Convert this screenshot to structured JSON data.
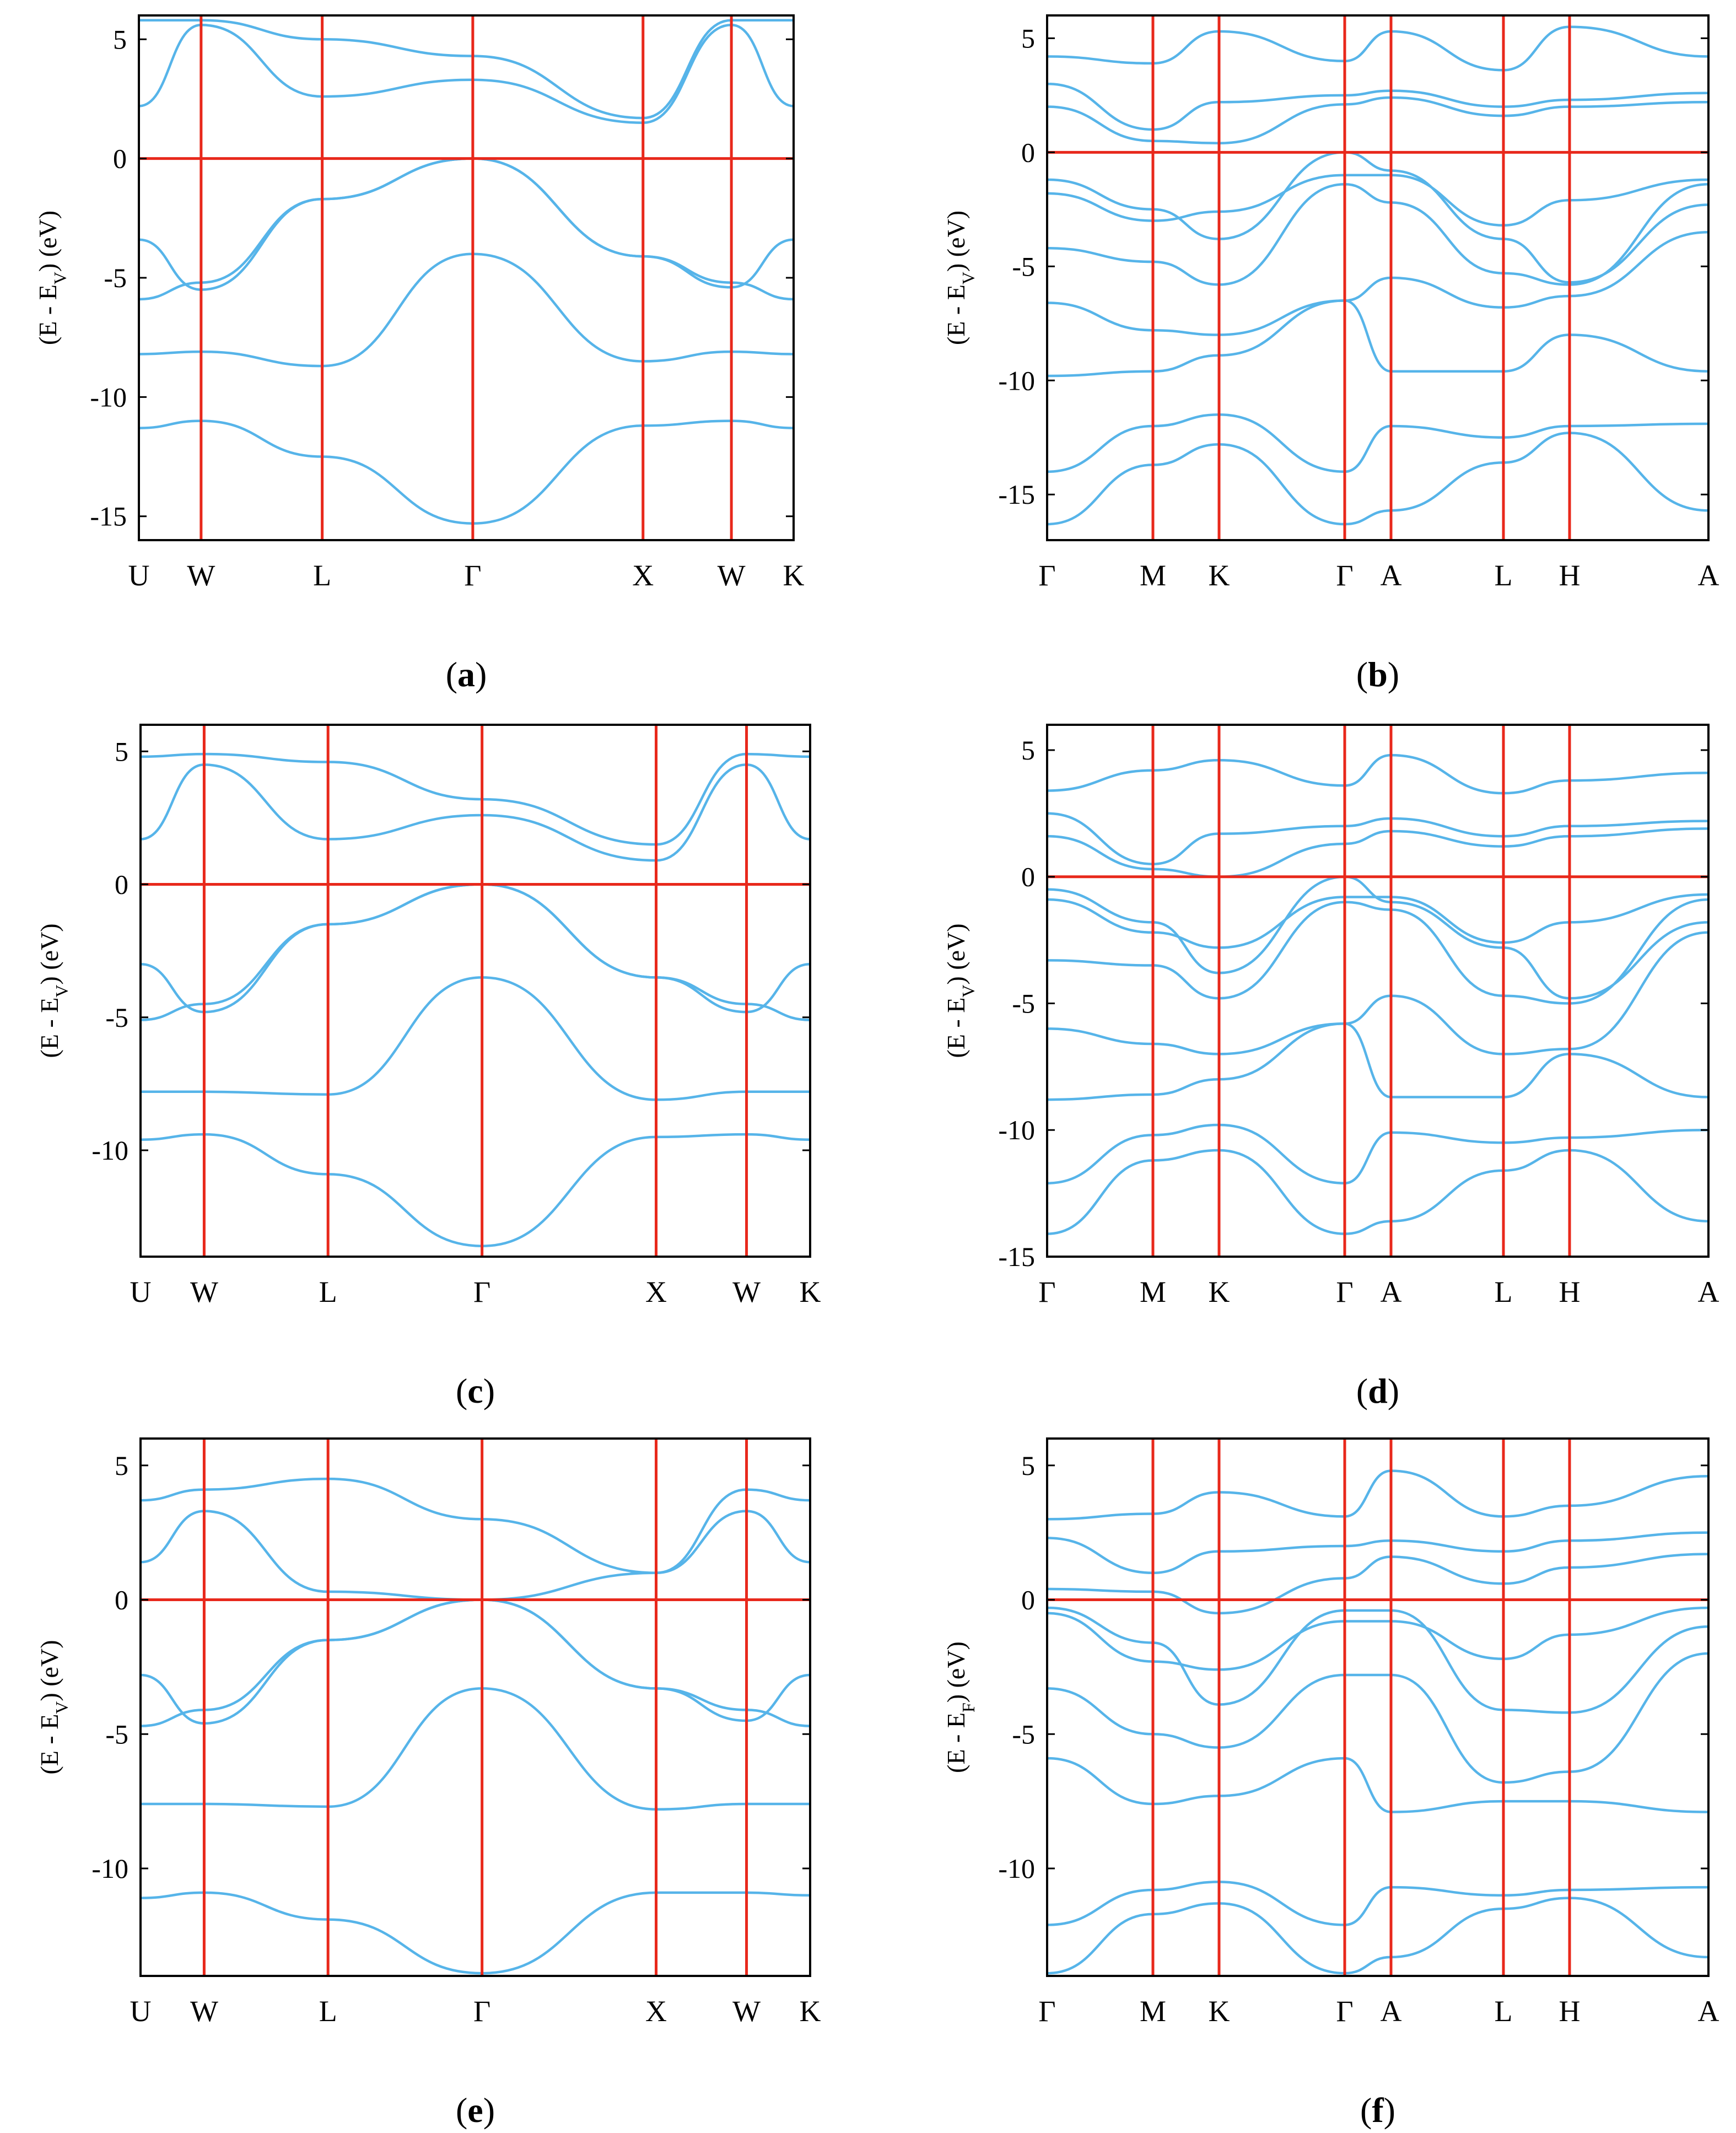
{
  "chart_data": [
    {
      "type": "line",
      "panel": "a",
      "caption": "(a)",
      "caption_open": "(",
      "caption_letter": "a",
      "caption_close": ")",
      "title": "",
      "xlabel": "",
      "ylabel_main": "(E - E",
      "ylabel_sub": "V",
      "ylabel_unit": ") (eV)",
      "ylim": [
        -16,
        6
      ],
      "yticks": [
        5,
        0,
        -5,
        -10,
        -15
      ],
      "ytick_labels": [
        "5",
        "0",
        "-5",
        "-10",
        "-15"
      ],
      "x": [
        0,
        0.095,
        0.28,
        0.51,
        0.77,
        0.905,
        1.0
      ],
      "kpoints": [
        "U",
        "W",
        "L",
        "Γ",
        "X",
        "W",
        "K"
      ],
      "fermi_level": 0,
      "series": [
        {
          "name": "band 1",
          "values": [
            -11.3,
            -11.0,
            -12.5,
            -15.3,
            -11.2,
            -11.0,
            -11.3
          ]
        },
        {
          "name": "band 2",
          "values": [
            -8.2,
            -8.1,
            -8.7,
            -4.0,
            -8.5,
            -8.1,
            -8.2
          ]
        },
        {
          "name": "band 3",
          "values": [
            -5.9,
            -5.2,
            -1.7,
            0.0,
            -4.1,
            -5.2,
            -5.9
          ]
        },
        {
          "name": "band 4",
          "values": [
            -3.4,
            -5.5,
            -1.7,
            0.0,
            -4.1,
            -5.4,
            -3.4
          ]
        },
        {
          "name": "band 5",
          "values": [
            2.2,
            5.6,
            2.6,
            3.3,
            1.5,
            5.6,
            2.2
          ]
        },
        {
          "name": "band 6",
          "values": [
            5.8,
            5.8,
            5.0,
            4.3,
            1.7,
            5.8,
            5.8
          ]
        }
      ]
    },
    {
      "type": "line",
      "panel": "b",
      "caption": "(b)",
      "caption_open": "(",
      "caption_letter": "b",
      "caption_close": ")",
      "title": "",
      "xlabel": "",
      "ylabel_main": "(E - E",
      "ylabel_sub": "V",
      "ylabel_unit": ") (eV)",
      "ylim": [
        -17,
        6
      ],
      "yticks": [
        5,
        0,
        -5,
        -10,
        -15
      ],
      "ytick_labels": [
        "5",
        "0",
        "-5",
        "-10",
        "-15"
      ],
      "x": [
        0,
        0.16,
        0.26,
        0.45,
        0.52,
        0.69,
        0.79,
        1.0
      ],
      "kpoints": [
        "Γ",
        "M",
        "K",
        "Γ",
        "A",
        "L",
        "H",
        "A"
      ],
      "fermi_level": 0,
      "series": [
        {
          "name": "band 1",
          "values": [
            -16.3,
            -13.7,
            -12.8,
            -16.3,
            -15.7,
            -13.6,
            -12.3,
            -15.7
          ]
        },
        {
          "name": "band 2",
          "values": [
            -14.0,
            -12.0,
            -11.5,
            -14.0,
            -12.0,
            -12.5,
            -12.0,
            -11.9
          ]
        },
        {
          "name": "band 3",
          "values": [
            -9.8,
            -9.6,
            -8.9,
            -6.5,
            -9.6,
            -9.6,
            -8.0,
            -9.6
          ]
        },
        {
          "name": "band 4",
          "values": [
            -6.6,
            -7.8,
            -8.0,
            -6.5,
            -5.5,
            -6.8,
            -6.3,
            -3.5
          ]
        },
        {
          "name": "band 5",
          "values": [
            -4.2,
            -4.8,
            -5.8,
            -1.4,
            -2.2,
            -5.3,
            -5.8,
            -1.4
          ]
        },
        {
          "name": "band 6",
          "values": [
            -1.8,
            -3.0,
            -2.6,
            -1.0,
            -1.0,
            -3.2,
            -2.1,
            -1.2
          ]
        },
        {
          "name": "band 7",
          "values": [
            -1.2,
            -2.5,
            -3.8,
            0.0,
            -0.8,
            -3.8,
            -5.7,
            -2.3
          ]
        },
        {
          "name": "band 8",
          "values": [
            2.0,
            0.5,
            0.4,
            2.1,
            2.4,
            1.6,
            2.0,
            2.2
          ]
        },
        {
          "name": "band 9",
          "values": [
            3.0,
            1.0,
            2.2,
            2.5,
            2.7,
            2.0,
            2.3,
            2.6
          ]
        },
        {
          "name": "band 10",
          "values": [
            4.2,
            3.9,
            5.3,
            4.0,
            5.3,
            3.6,
            5.5,
            4.2
          ]
        }
      ]
    },
    {
      "type": "line",
      "panel": "c",
      "caption": "(c)",
      "caption_open": "(",
      "caption_letter": "c",
      "caption_close": ")",
      "title": "",
      "xlabel": "",
      "ylabel_main": "(E - E",
      "ylabel_sub": "V",
      "ylabel_unit": ") (eV)",
      "ylim": [
        -14,
        6
      ],
      "yticks": [
        5,
        0,
        -5,
        -10
      ],
      "ytick_labels": [
        "5",
        "0",
        "-5",
        "-10"
      ],
      "x": [
        0,
        0.095,
        0.28,
        0.51,
        0.77,
        0.905,
        1.0
      ],
      "kpoints": [
        "U",
        "W",
        "L",
        "Γ",
        "X",
        "W",
        "K"
      ],
      "fermi_level": 0,
      "series": [
        {
          "name": "band 1",
          "values": [
            -9.6,
            -9.4,
            -10.9,
            -13.6,
            -9.5,
            -9.4,
            -9.6
          ]
        },
        {
          "name": "band 2",
          "values": [
            -7.8,
            -7.8,
            -7.9,
            -3.5,
            -8.1,
            -7.8,
            -7.8
          ]
        },
        {
          "name": "band 3",
          "values": [
            -5.1,
            -4.5,
            -1.5,
            0.0,
            -3.5,
            -4.5,
            -5.1
          ]
        },
        {
          "name": "band 4",
          "values": [
            -3.0,
            -4.8,
            -1.5,
            0.0,
            -3.5,
            -4.8,
            -3.0
          ]
        },
        {
          "name": "band 5",
          "values": [
            1.7,
            4.5,
            1.7,
            2.6,
            0.9,
            4.5,
            1.7
          ]
        },
        {
          "name": "band 6",
          "values": [
            4.8,
            4.9,
            4.6,
            3.2,
            1.5,
            4.9,
            4.8
          ]
        }
      ]
    },
    {
      "type": "line",
      "panel": "d",
      "caption": "(d)",
      "caption_open": "(",
      "caption_letter": "d",
      "caption_close": ")",
      "title": "",
      "xlabel": "",
      "ylabel_main": "(E - E",
      "ylabel_sub": "V",
      "ylabel_unit": ") (eV)",
      "ylim": [
        -15,
        6
      ],
      "yticks": [
        5,
        0,
        -5,
        -10,
        -15
      ],
      "ytick_labels": [
        "5",
        "0",
        "-5",
        "-10",
        "-15"
      ],
      "x": [
        0,
        0.16,
        0.26,
        0.45,
        0.52,
        0.69,
        0.79,
        1.0
      ],
      "kpoints": [
        "Γ",
        "M",
        "K",
        "Γ",
        "A",
        "L",
        "H",
        "A"
      ],
      "fermi_level": 0,
      "series": [
        {
          "name": "band 1",
          "values": [
            -14.1,
            -11.2,
            -10.8,
            -14.1,
            -13.6,
            -11.6,
            -10.8,
            -13.6
          ]
        },
        {
          "name": "band 2",
          "values": [
            -12.1,
            -10.2,
            -9.8,
            -12.1,
            -10.1,
            -10.5,
            -10.3,
            -10.0
          ]
        },
        {
          "name": "band 3",
          "values": [
            -8.8,
            -8.6,
            -8.0,
            -5.8,
            -8.7,
            -8.7,
            -7.0,
            -8.7
          ]
        },
        {
          "name": "band 4",
          "values": [
            -6.0,
            -6.6,
            -7.0,
            -5.8,
            -4.7,
            -7.0,
            -6.8,
            -2.2
          ]
        },
        {
          "name": "band 5",
          "values": [
            -3.3,
            -3.5,
            -4.8,
            -1.0,
            -1.3,
            -4.7,
            -5.0,
            -0.9
          ]
        },
        {
          "name": "band 6",
          "values": [
            -0.9,
            -2.2,
            -2.8,
            -0.8,
            -0.8,
            -2.6,
            -1.8,
            -0.7
          ]
        },
        {
          "name": "band 7",
          "values": [
            -0.5,
            -1.8,
            -3.8,
            0.0,
            -1.0,
            -2.8,
            -4.8,
            -1.8
          ]
        },
        {
          "name": "band 8",
          "values": [
            1.6,
            0.3,
            0.0,
            1.3,
            1.8,
            1.2,
            1.6,
            1.9
          ]
        },
        {
          "name": "band 9",
          "values": [
            2.5,
            0.5,
            1.7,
            2.0,
            2.3,
            1.6,
            2.0,
            2.2
          ]
        },
        {
          "name": "band 10",
          "values": [
            3.4,
            4.2,
            4.6,
            3.6,
            4.8,
            3.3,
            3.8,
            4.1
          ]
        }
      ]
    },
    {
      "type": "line",
      "panel": "e",
      "caption": "(e)",
      "caption_open": "(",
      "caption_letter": "e",
      "caption_close": ")",
      "title": "",
      "xlabel": "",
      "ylabel_main": "(E - E",
      "ylabel_sub": "V",
      "ylabel_unit": ") (eV)",
      "ylim": [
        -14,
        6
      ],
      "yticks": [
        5,
        0,
        -5,
        -10
      ],
      "ytick_labels": [
        "5",
        "0",
        "-5",
        "-10"
      ],
      "x": [
        0,
        0.095,
        0.28,
        0.51,
        0.77,
        0.905,
        1.0
      ],
      "kpoints": [
        "U",
        "W",
        "L",
        "Γ",
        "X",
        "W",
        "K"
      ],
      "fermi_level": 0,
      "series": [
        {
          "name": "band 1",
          "values": [
            -11.1,
            -10.9,
            -11.9,
            -13.9,
            -10.9,
            -10.9,
            -11.0
          ]
        },
        {
          "name": "band 2",
          "values": [
            -7.6,
            -7.6,
            -7.7,
            -3.3,
            -7.8,
            -7.6,
            -7.6
          ]
        },
        {
          "name": "band 3",
          "values": [
            -4.7,
            -4.1,
            -1.5,
            0.0,
            -3.3,
            -4.1,
            -4.7
          ]
        },
        {
          "name": "band 4",
          "values": [
            -2.8,
            -4.6,
            -1.5,
            0.0,
            -3.3,
            -4.5,
            -2.8
          ]
        },
        {
          "name": "band 5",
          "values": [
            1.4,
            3.3,
            0.3,
            0.0,
            1.0,
            3.3,
            1.4
          ]
        },
        {
          "name": "band 6",
          "values": [
            3.7,
            4.1,
            4.5,
            3.0,
            1.0,
            4.1,
            3.7
          ]
        }
      ]
    },
    {
      "type": "line",
      "panel": "f",
      "caption": "(f)",
      "caption_open": "(",
      "caption_letter": "f",
      "caption_close": ")",
      "title": "",
      "xlabel": "",
      "ylabel_main": "(E - E",
      "ylabel_sub": "F",
      "ylabel_unit": ") (eV)",
      "ylim": [
        -14,
        6
      ],
      "yticks": [
        5,
        0,
        -5,
        -10
      ],
      "ytick_labels": [
        "5",
        "0",
        "-5",
        "-10"
      ],
      "x": [
        0,
        0.16,
        0.26,
        0.45,
        0.52,
        0.69,
        0.79,
        1.0
      ],
      "kpoints": [
        "Γ",
        "M",
        "K",
        "Γ",
        "A",
        "L",
        "H",
        "A"
      ],
      "fermi_level": 0,
      "series": [
        {
          "name": "band 1",
          "values": [
            -13.9,
            -11.7,
            -11.3,
            -13.9,
            -13.3,
            -11.5,
            -11.1,
            -13.3
          ]
        },
        {
          "name": "band 2",
          "values": [
            -12.1,
            -10.8,
            -10.5,
            -12.1,
            -10.7,
            -11.0,
            -10.8,
            -10.7
          ]
        },
        {
          "name": "band 3",
          "values": [
            -5.9,
            -7.6,
            -7.3,
            -5.9,
            -7.9,
            -7.5,
            -7.5,
            -7.9
          ]
        },
        {
          "name": "band 4",
          "values": [
            -3.3,
            -5.0,
            -5.5,
            -2.8,
            -2.8,
            -6.8,
            -6.4,
            -2.0
          ]
        },
        {
          "name": "band 5",
          "values": [
            -0.3,
            -1.6,
            -3.9,
            -0.4,
            -0.4,
            -4.1,
            -4.2,
            -1.0
          ]
        },
        {
          "name": "band 6",
          "values": [
            -0.5,
            -2.3,
            -2.6,
            -0.8,
            -0.8,
            -2.2,
            -1.3,
            -0.3
          ]
        },
        {
          "name": "band 7",
          "values": [
            0.4,
            0.3,
            -0.5,
            0.8,
            1.6,
            0.6,
            1.2,
            1.7
          ]
        },
        {
          "name": "band 8",
          "values": [
            2.3,
            1.0,
            1.8,
            2.0,
            2.2,
            1.8,
            2.2,
            2.5
          ]
        },
        {
          "name": "band 9",
          "values": [
            3.0,
            3.2,
            4.0,
            3.1,
            4.8,
            3.1,
            3.5,
            4.6
          ]
        }
      ]
    }
  ]
}
